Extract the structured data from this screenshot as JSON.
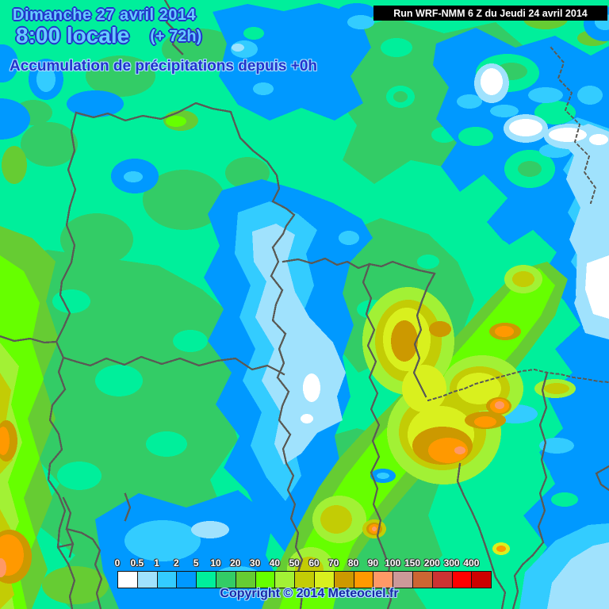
{
  "header": {
    "date": "Dimanche 27 avril 2014",
    "time": "8:00 locale",
    "forecast_offset": "(+ 72h)",
    "subtitle": "Accumulation de précipitations depuis +0h",
    "run_info": "Run WRF-NMM 6 Z du Jeudi 24 avril 2014"
  },
  "legend": {
    "values": [
      "0",
      "0.5",
      "1",
      "2",
      "5",
      "10",
      "20",
      "30",
      "40",
      "50",
      "60",
      "70",
      "80",
      "90",
      "100",
      "150",
      "200",
      "300",
      "400"
    ],
    "colors": [
      "#FFFFFF",
      "#A0E2FD",
      "#33CCFF",
      "#0099FF",
      "#00EF9B",
      "#33CC66",
      "#66CC33",
      "#66FF00",
      "#A2F135",
      "#C3CC05",
      "#D9F01E",
      "#CC9900",
      "#FF9900",
      "#FF9966",
      "#CC9999",
      "#CC6633",
      "#CC3333",
      "#FF0000",
      "#CC0000"
    ]
  },
  "footer": {
    "copyright": "Copyright © 2014 Meteociel.fr"
  },
  "map": {
    "palette": {
      "p0": "#FFFFFF",
      "p05": "#A0E2FD",
      "p1": "#33CCFF",
      "p2": "#0099FF",
      "p5": "#00EF9B",
      "p10": "#33CC66",
      "p20": "#66CC33",
      "p30": "#66FF00",
      "p40": "#A2F135",
      "p50": "#C3CC05",
      "p60": "#D9F01E",
      "p70": "#CC9900",
      "p80": "#FF9900",
      "p90": "#FF9966",
      "p100": "#CC9999",
      "p150": "#CC6633"
    },
    "border_color": "#5A5A55",
    "text": {
      "light": "#66CCFF",
      "dark": "#2233CC",
      "halo": "#AADDFF",
      "copyright": "#1A2AA8",
      "legend_label": "#FFFFFF",
      "run_bg": "#000000",
      "run_fg": "#FFFFFF"
    }
  }
}
